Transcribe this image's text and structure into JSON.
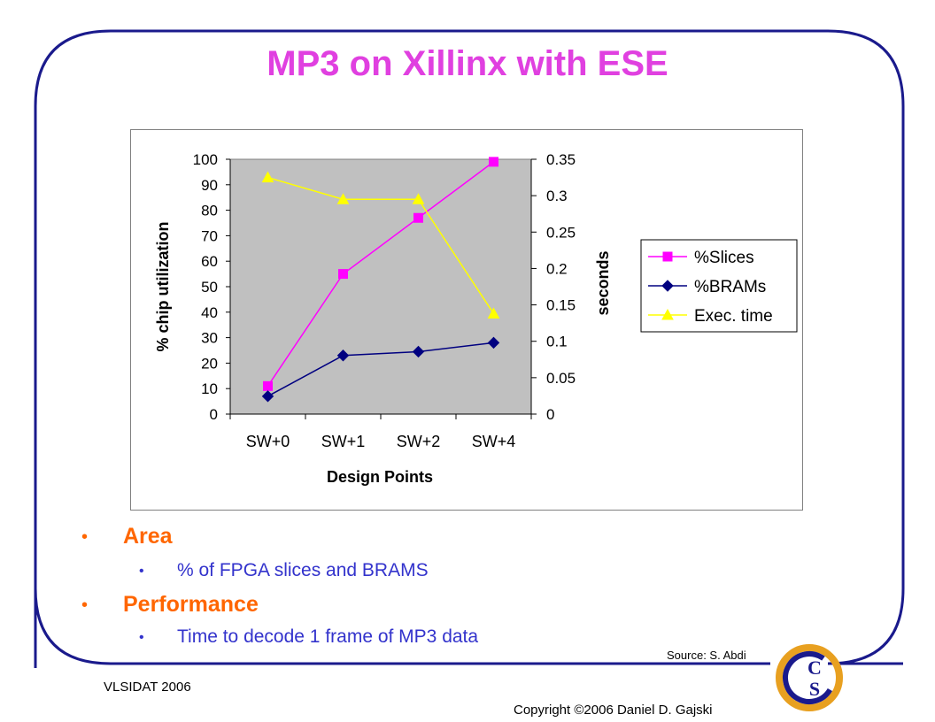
{
  "slide": {
    "title": "MP3 on Xillinx with ESE",
    "bullets": [
      {
        "label": "Area",
        "sub": "% of FPGA slices and BRAMS"
      },
      {
        "label": "Performance",
        "sub": "Time to decode 1 frame of MP3 data"
      }
    ],
    "source": "Source: S. Abdi",
    "footer_left": "VLSIDAT 2006",
    "footer_right": "Copyright ©2006 Daniel D. Gajski",
    "logo_letters": "CECS"
  },
  "colors": {
    "title": "#E040E0",
    "bullet_main": "#FF6600",
    "bullet_sub": "#3333CC",
    "plot_bg": "#C0C0C0",
    "frame": "#1A1A8C"
  },
  "chart_data": {
    "type": "line",
    "xlabel": "Design Points",
    "ylabel": "% chip utilization",
    "y2label": "seconds",
    "categories": [
      "SW+0",
      "SW+1",
      "SW+2",
      "SW+4"
    ],
    "ylim": [
      0,
      100
    ],
    "y2lim": [
      0,
      0.35
    ],
    "yticks": [
      "0",
      "10",
      "20",
      "30",
      "40",
      "50",
      "60",
      "70",
      "80",
      "90",
      "100"
    ],
    "y2ticks": [
      "0",
      "0.05",
      "0.1",
      "0.15",
      "0.2",
      "0.25",
      "0.3",
      "0.35"
    ],
    "legend_position": "right",
    "series": [
      {
        "name": "%Slices",
        "axis": "left",
        "marker": "square",
        "color": "#FF00FF",
        "values": [
          11,
          55,
          77,
          99
        ]
      },
      {
        "name": "%BRAMs",
        "axis": "left",
        "marker": "diamond",
        "color": "#000080",
        "values": [
          7,
          23,
          24.5,
          28
        ]
      },
      {
        "name": "Exec. time",
        "axis": "right",
        "marker": "triangle",
        "color": "#FFFF00",
        "values": [
          0.325,
          0.295,
          0.295,
          0.138
        ]
      }
    ]
  }
}
